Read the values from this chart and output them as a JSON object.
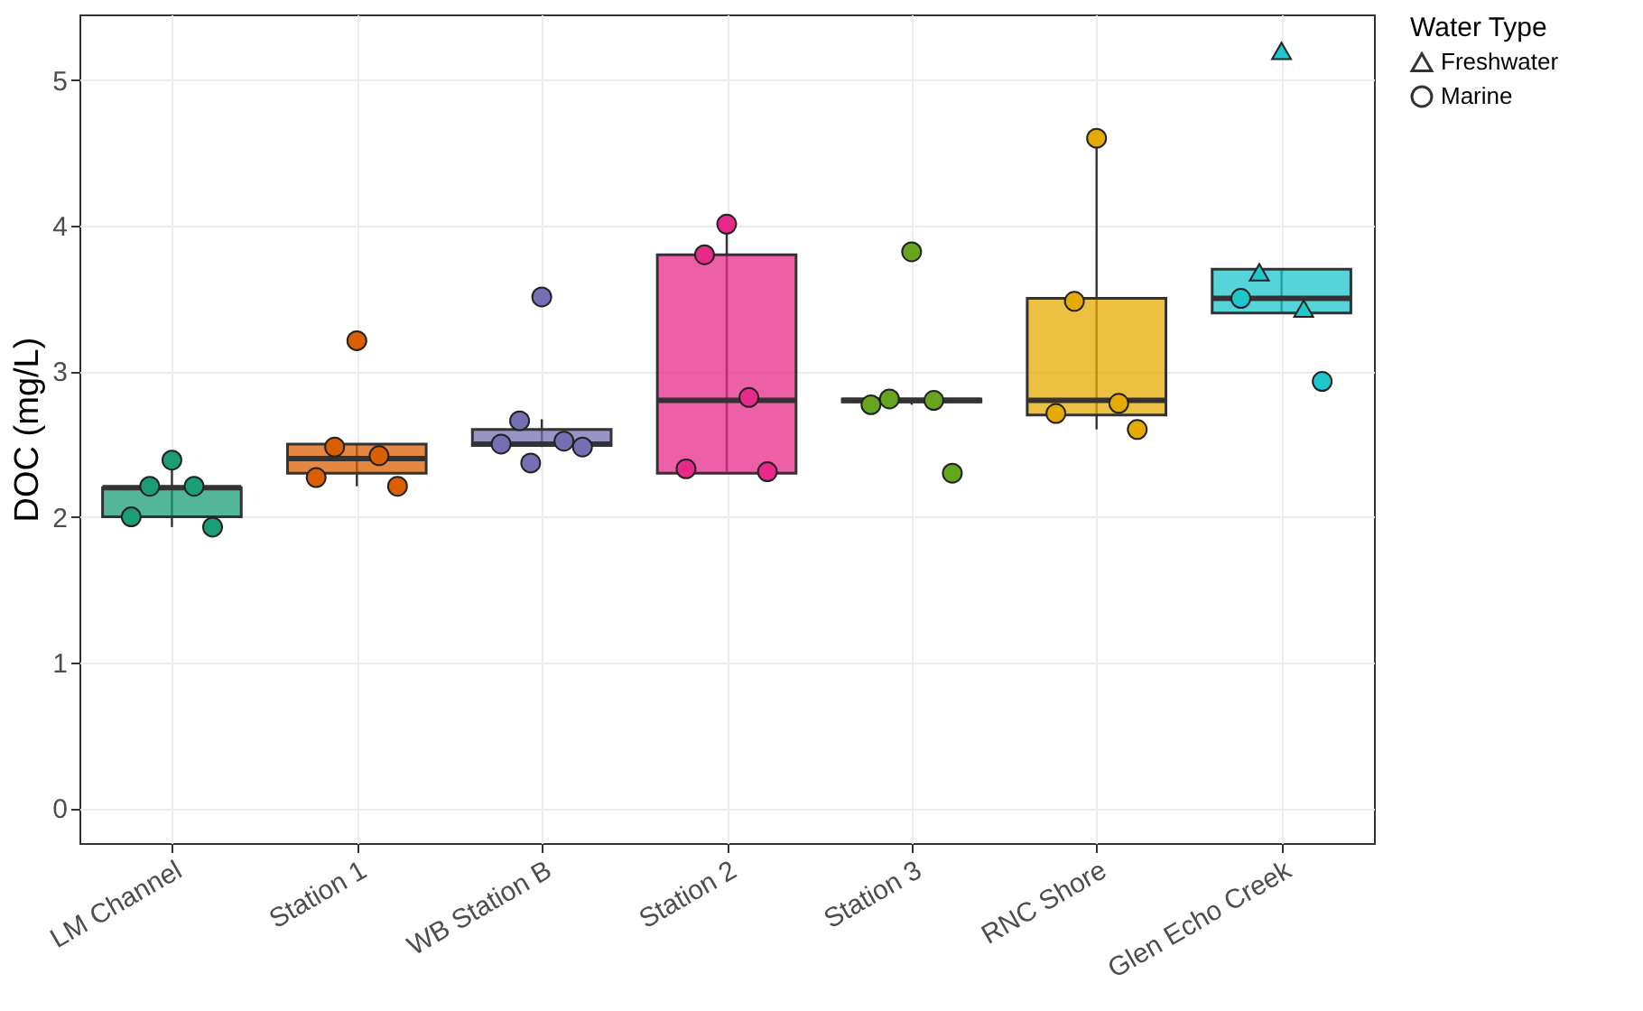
{
  "chart_data": {
    "type": "box",
    "ylabel": "DOC (mg/L)",
    "legend_title": "Water Type",
    "legend": "right",
    "grid": true,
    "categories": [
      "LM Channel",
      "Station 1",
      "WB Station B",
      "Station 2",
      "Station 3",
      "RNC Shore",
      "Glen Echo Creek"
    ],
    "colors": [
      "#1b9e77",
      "#d95f02",
      "#7570b3",
      "#e7298a",
      "#66a61e",
      "#e6ab02",
      "#1fc6cc"
    ],
    "boxes": [
      {
        "low": 1.93,
        "q1": 2.0,
        "median": 2.2,
        "q3": 2.2,
        "high": 2.39
      },
      {
        "low": 2.21,
        "q1": 2.3,
        "median": 2.4,
        "q3": 2.5,
        "high": 2.5
      },
      {
        "low": 2.48,
        "q1": 2.49,
        "median": 2.5,
        "q3": 2.6,
        "high": 2.67
      },
      {
        "low": 2.31,
        "q1": 2.3,
        "median": 2.8,
        "q3": 3.8,
        "high": 4.0
      },
      {
        "low": 2.77,
        "q1": 2.79,
        "median": 2.8,
        "q3": 2.81,
        "high": 2.81
      },
      {
        "low": 2.6,
        "q1": 2.7,
        "median": 2.8,
        "q3": 3.5,
        "high": 4.6
      },
      {
        "low": 3.4,
        "q1": 3.4,
        "median": 3.5,
        "q3": 3.7,
        "high": 3.7
      }
    ],
    "ylim": [
      -0.24,
      5.45
    ],
    "yticks": [
      0,
      1,
      2,
      3,
      4,
      5
    ],
    "series": [
      {
        "name": "Freshwater",
        "type": "scatter",
        "marker": "triangle",
        "x": [
          "Glen Echo Creek",
          "Glen Echo Creek",
          "Glen Echo Creek"
        ],
        "values": [
          5.2,
          3.68,
          3.43
        ],
        "colors": [
          "#1fc6cc",
          "#1fc6cc",
          "#1fc6cc"
        ]
      },
      {
        "name": "Marine",
        "type": "scatter",
        "marker": "circle",
        "x": [
          "LM Channel",
          "LM Channel",
          "LM Channel",
          "LM Channel",
          "LM Channel",
          "Station 1",
          "Station 1",
          "Station 1",
          "Station 1",
          "Station 1",
          "WB Station B",
          "WB Station B",
          "WB Station B",
          "WB Station B",
          "WB Station B",
          "WB Station B",
          "Station 2",
          "Station 2",
          "Station 2",
          "Station 2",
          "Station 2",
          "Station 3",
          "Station 3",
          "Station 3",
          "Station 3",
          "Station 3",
          "RNC Shore",
          "RNC Shore",
          "RNC Shore",
          "RNC Shore",
          "RNC Shore",
          "Glen Echo Creek",
          "Glen Echo Creek"
        ],
        "values": [
          2.39,
          2.21,
          2.21,
          2.0,
          1.93,
          3.21,
          2.48,
          2.42,
          2.27,
          2.21,
          3.51,
          2.66,
          2.52,
          2.5,
          2.48,
          2.37,
          4.01,
          3.8,
          2.82,
          2.33,
          2.31,
          3.82,
          2.81,
          2.8,
          2.77,
          2.3,
          4.6,
          3.48,
          2.78,
          2.71,
          2.6,
          3.5,
          2.93
        ],
        "colors": [
          "#1b9e77",
          "#1b9e77",
          "#1b9e77",
          "#1b9e77",
          "#1b9e77",
          "#d95f02",
          "#d95f02",
          "#d95f02",
          "#d95f02",
          "#d95f02",
          "#7570b3",
          "#7570b3",
          "#7570b3",
          "#7570b3",
          "#7570b3",
          "#7570b3",
          "#e7298a",
          "#e7298a",
          "#e7298a",
          "#e7298a",
          "#e7298a",
          "#66a61e",
          "#66a61e",
          "#66a61e",
          "#66a61e",
          "#66a61e",
          "#e6ab02",
          "#e6ab02",
          "#e6ab02",
          "#e6ab02",
          "#e6ab02",
          "#1fc6cc",
          "#1fc6cc"
        ]
      }
    ]
  }
}
